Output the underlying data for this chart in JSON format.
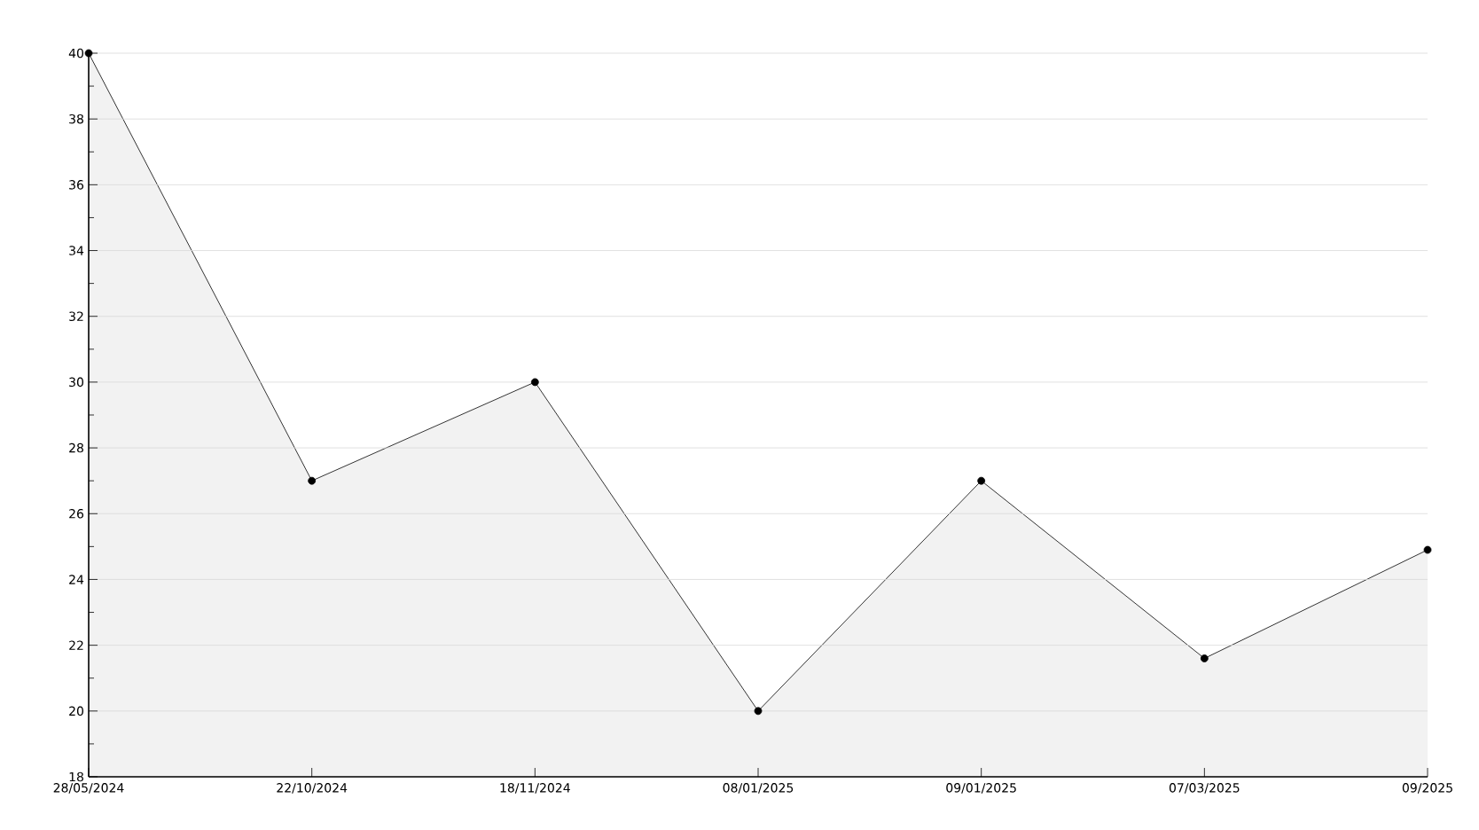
{
  "chart_data": {
    "type": "area",
    "categories": [
      "28/05/2024",
      "22/10/2024",
      "18/11/2024",
      "08/01/2025",
      "09/01/2025",
      "07/03/2025",
      "09/2025"
    ],
    "values": [
      40,
      27,
      30,
      20,
      27,
      21.6,
      24.9
    ],
    "color": "#000000",
    "marker": "circle",
    "grid": "y",
    "ylim": [
      18,
      40
    ],
    "yticks": [
      18,
      {
        "value": 19,
        "label": null
      },
      20,
      {
        "value": 21,
        "label": null
      },
      22,
      {
        "value": 23,
        "label": null
      },
      24,
      {
        "value": 25,
        "label": null
      },
      26,
      {
        "value": 27,
        "label": null
      },
      28,
      {
        "value": 29,
        "label": null
      },
      30,
      {
        "value": 31,
        "label": null
      },
      32,
      {
        "value": 33,
        "label": null
      },
      34,
      {
        "value": 35,
        "label": null
      },
      36,
      {
        "value": 37,
        "label": null
      },
      38,
      {
        "value": 39,
        "label": null
      },
      40
    ]
  }
}
